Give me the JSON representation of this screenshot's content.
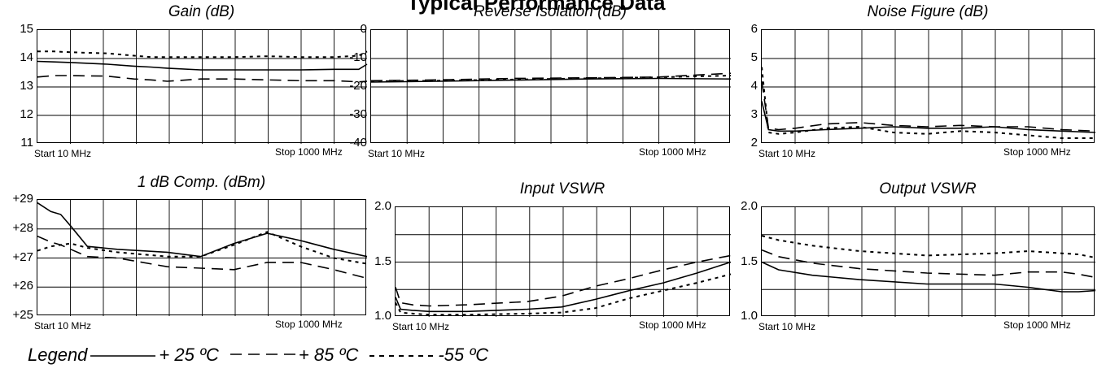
{
  "heading_partial": "Typical Performance Data",
  "legend": {
    "label": "Legend",
    "entries": [
      {
        "style": "solid",
        "label": "+ 25 ºC"
      },
      {
        "style": "long-dash",
        "label": "+ 85 ºC"
      },
      {
        "style": "short-dash",
        "label": "-55 ºC"
      }
    ]
  },
  "chart_data": [
    {
      "type": "line",
      "title": "Gain (dB)",
      "x_start_label": "Start  10  MHz",
      "x_stop_label": "Stop  1000 MHz",
      "xlim": [
        10,
        1000
      ],
      "ylim": [
        11,
        15
      ],
      "yticks": [
        "15",
        "14",
        "13",
        "12",
        "11"
      ],
      "x": [
        10,
        60,
        110,
        220,
        300,
        350,
        400,
        500,
        600,
        700,
        800,
        900,
        975,
        1000
      ],
      "series": [
        {
          "style": "solid",
          "values": [
            13.9,
            13.88,
            13.86,
            13.8,
            13.73,
            13.7,
            13.66,
            13.6,
            13.6,
            13.6,
            13.6,
            13.62,
            13.62,
            13.8
          ]
        },
        {
          "style": "long-dash",
          "values": [
            13.35,
            13.4,
            13.4,
            13.38,
            13.28,
            13.25,
            13.2,
            13.28,
            13.28,
            13.25,
            13.22,
            13.22,
            13.18,
            13.2
          ]
        },
        {
          "style": "short-dash",
          "values": [
            14.25,
            14.25,
            14.22,
            14.18,
            14.1,
            14.05,
            14.05,
            14.05,
            14.05,
            14.08,
            14.05,
            14.05,
            14.1,
            14.25
          ]
        }
      ]
    },
    {
      "type": "line",
      "title": "Reverse Isolation (dB)",
      "x_start_label": "Start  10  MHz",
      "x_stop_label": "Stop  1000 MHz",
      "xlim": [
        10,
        1000
      ],
      "ylim": [
        -40,
        0
      ],
      "yticks": [
        "0",
        "-10",
        "-20",
        "-30",
        "-40"
      ],
      "x": [
        10,
        200,
        400,
        600,
        800,
        1000
      ],
      "series": [
        {
          "style": "solid",
          "values": [
            -18.3,
            -18.0,
            -17.6,
            -17.2,
            -17.0,
            -17.2
          ]
        },
        {
          "style": "long-dash",
          "values": [
            -17.8,
            -17.5,
            -17.0,
            -16.8,
            -16.5,
            -15.2
          ]
        },
        {
          "style": "short-dash",
          "values": [
            -18.0,
            -17.8,
            -17.4,
            -17.0,
            -16.6,
            -16.0
          ]
        }
      ]
    },
    {
      "type": "line",
      "title": "Noise Figure (dB)",
      "x_start_label": "Start  10  MHz",
      "x_stop_label": "Stop  1000 MHz",
      "xlim": [
        10,
        1000
      ],
      "ylim": [
        2,
        6
      ],
      "yticks": [
        "6",
        "5",
        "4",
        "3",
        "2"
      ],
      "x": [
        10,
        30,
        60,
        110,
        200,
        300,
        400,
        500,
        600,
        700,
        800,
        900,
        1000
      ],
      "series": [
        {
          "style": "solid",
          "values": [
            3.5,
            2.5,
            2.45,
            2.45,
            2.5,
            2.55,
            2.6,
            2.55,
            2.55,
            2.6,
            2.5,
            2.45,
            2.4
          ]
        },
        {
          "style": "long-dash",
          "values": [
            4.2,
            2.55,
            2.5,
            2.55,
            2.7,
            2.75,
            2.65,
            2.6,
            2.65,
            2.6,
            2.6,
            2.5,
            2.45
          ]
        },
        {
          "style": "short-dash",
          "values": [
            4.7,
            2.4,
            2.35,
            2.4,
            2.55,
            2.6,
            2.4,
            2.35,
            2.45,
            2.4,
            2.3,
            2.2,
            2.2
          ]
        }
      ]
    },
    {
      "type": "line",
      "title": "1 dB Comp. (dBm)",
      "x_start_label": "Start  10  MHz",
      "x_stop_label": "Stop  1000 MHz",
      "xlim": [
        10,
        1000
      ],
      "ylim": [
        25,
        29
      ],
      "yticks": [
        "+29",
        "+28",
        "+27",
        "+26",
        "+25"
      ],
      "x": [
        10,
        50,
        80,
        110,
        160,
        250,
        400,
        500,
        600,
        700,
        800,
        900,
        1000
      ],
      "series": [
        {
          "style": "solid",
          "values": [
            28.9,
            28.6,
            28.5,
            28.1,
            27.4,
            27.3,
            27.2,
            27.05,
            27.5,
            27.85,
            27.6,
            27.3,
            27.05
          ]
        },
        {
          "style": "long-dash",
          "values": [
            27.75,
            27.55,
            27.45,
            27.3,
            27.05,
            27.0,
            26.7,
            26.65,
            26.6,
            26.85,
            26.85,
            26.6,
            26.3
          ]
        },
        {
          "style": "short-dash",
          "values": [
            27.25,
            27.4,
            27.45,
            27.5,
            27.35,
            27.2,
            27.05,
            27.05,
            27.45,
            27.9,
            27.4,
            27.0,
            26.8
          ]
        }
      ]
    },
    {
      "type": "line",
      "title": "Input VSWR",
      "x_start_label": "Start  10  MHz",
      "x_stop_label": "Stop  1000 MHz",
      "xlim": [
        10,
        1000
      ],
      "ylim": [
        1.0,
        2.0
      ],
      "yticks": [
        "2.0",
        "1.5",
        "1.0"
      ],
      "x": [
        10,
        25,
        60,
        110,
        220,
        400,
        500,
        600,
        700,
        800,
        900,
        1000
      ],
      "series": [
        {
          "style": "solid",
          "values": [
            1.18,
            1.07,
            1.06,
            1.05,
            1.05,
            1.07,
            1.09,
            1.16,
            1.24,
            1.31,
            1.4,
            1.5
          ]
        },
        {
          "style": "long-dash",
          "values": [
            1.27,
            1.13,
            1.11,
            1.1,
            1.11,
            1.14,
            1.19,
            1.28,
            1.35,
            1.43,
            1.5,
            1.56
          ]
        },
        {
          "style": "short-dash",
          "values": [
            1.13,
            1.04,
            1.03,
            1.02,
            1.02,
            1.03,
            1.04,
            1.08,
            1.17,
            1.24,
            1.31,
            1.39
          ]
        }
      ]
    },
    {
      "type": "line",
      "title": "Output VSWR",
      "x_start_label": "Start  10  MHz",
      "x_stop_label": "Stop  1000 MHz",
      "xlim": [
        10,
        1000
      ],
      "ylim": [
        1.0,
        2.0
      ],
      "yticks": [
        "2.0",
        "1.5",
        "1.0"
      ],
      "x": [
        10,
        60,
        160,
        300,
        500,
        700,
        800,
        900,
        950,
        1000
      ],
      "series": [
        {
          "style": "solid",
          "values": [
            1.5,
            1.43,
            1.38,
            1.34,
            1.3,
            1.3,
            1.27,
            1.23,
            1.23,
            1.24
          ]
        },
        {
          "style": "long-dash",
          "values": [
            1.61,
            1.55,
            1.49,
            1.44,
            1.4,
            1.38,
            1.41,
            1.41,
            1.39,
            1.36
          ]
        },
        {
          "style": "short-dash",
          "values": [
            1.74,
            1.7,
            1.65,
            1.6,
            1.56,
            1.58,
            1.6,
            1.58,
            1.57,
            1.54
          ]
        }
      ]
    }
  ]
}
